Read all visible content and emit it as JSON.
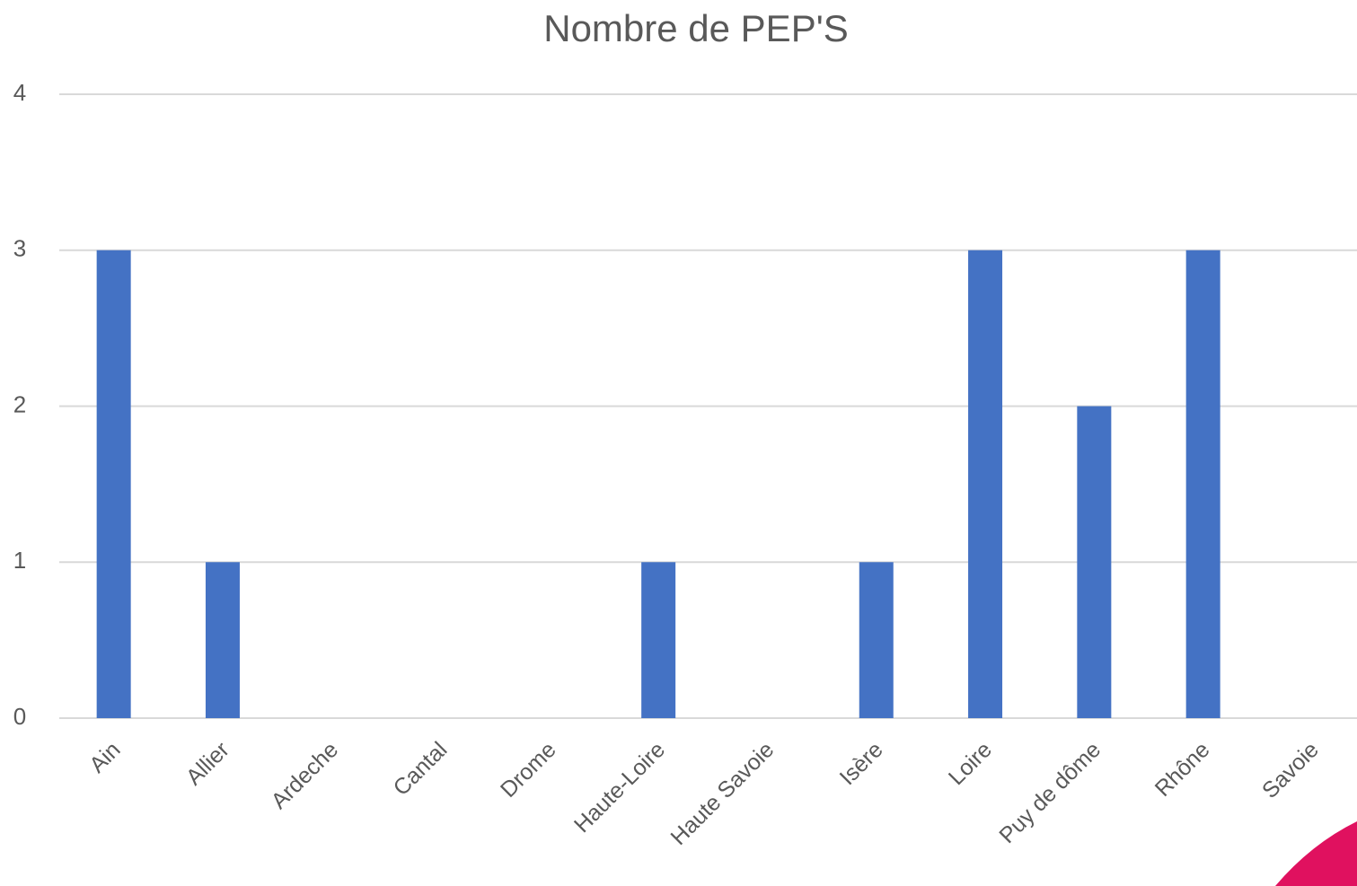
{
  "chart_data": {
    "type": "bar",
    "title": "Nombre de PEP'S",
    "categories": [
      "Ain",
      "Allier",
      "Ardeche",
      "Cantal",
      "Drome",
      "Haute-Loire",
      "Haute Savoie",
      "Isère",
      "Loire",
      "Puy de dôme",
      "Rhône",
      "Savoie"
    ],
    "values": [
      3,
      1,
      0,
      0,
      0,
      1,
      0,
      1,
      3,
      2,
      3,
      0
    ],
    "color": "#4472c4",
    "ylim": [
      0,
      4
    ],
    "yticks": [
      0,
      1,
      2,
      3,
      4
    ],
    "grid": true
  }
}
